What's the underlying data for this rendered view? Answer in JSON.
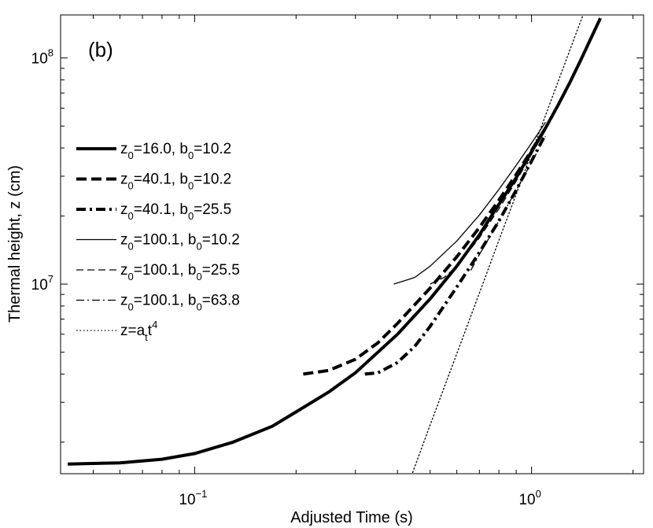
{
  "chart_data": {
    "type": "line",
    "panel_label": "(b)",
    "xlabel": "Adjusted Time (s)",
    "ylabel": "Thermal height, z (cm)",
    "xscale": "log",
    "yscale": "log",
    "xlim": [
      0.04,
      2.15
    ],
    "ylim": [
      1450000.0,
      155000000.0
    ],
    "grid": false,
    "legend_placement": "left",
    "x_ticks": [
      {
        "value": 0.1,
        "base": "10",
        "exp": "−1"
      },
      {
        "value": 1.0,
        "base": "10",
        "exp": "0"
      }
    ],
    "y_ticks": [
      {
        "value": 10000000.0,
        "base": "10",
        "exp": "7"
      },
      {
        "value": 100000000.0,
        "base": "10",
        "exp": "8"
      }
    ],
    "series": [
      {
        "name": "z0=16.0, b0=10.2",
        "label": {
          "a": "z",
          "a_sub": "0",
          "b": "=16.0, b",
          "b_sub": "0",
          "c": "=10.2",
          "sup": ""
        },
        "style": "solid",
        "width": 4,
        "points": [
          [
            0.042,
            1600000.0
          ],
          [
            0.06,
            1620000.0
          ],
          [
            0.08,
            1680000.0
          ],
          [
            0.1,
            1780000.0
          ],
          [
            0.13,
            2000000.0
          ],
          [
            0.17,
            2350000.0
          ],
          [
            0.2,
            2720000.0
          ],
          [
            0.25,
            3330000.0
          ],
          [
            0.3,
            4050000.0
          ],
          [
            0.4,
            6000000.0
          ],
          [
            0.5,
            8600000.0
          ],
          [
            0.6,
            12000000.0
          ],
          [
            0.7,
            16500000.0
          ],
          [
            0.8,
            22500000.0
          ],
          [
            0.9,
            29500000.0
          ],
          [
            1.0,
            38500000.0
          ],
          [
            1.1,
            49000000.0
          ],
          [
            1.2,
            62000000.0
          ],
          [
            1.3,
            78000000.0
          ],
          [
            1.4,
            98000000.0
          ],
          [
            1.6,
            150000000.0
          ]
        ]
      },
      {
        "name": "z0=40.1, b0=10.2",
        "label": {
          "a": "z",
          "a_sub": "0",
          "b": "=40.1, b",
          "b_sub": "0",
          "c": "=10.2",
          "sup": ""
        },
        "style": "dashed",
        "width": 4,
        "points": [
          [
            0.21,
            4000000.0
          ],
          [
            0.25,
            4150000.0
          ],
          [
            0.3,
            4650000.0
          ],
          [
            0.35,
            5500000.0
          ],
          [
            0.4,
            6700000.0
          ],
          [
            0.5,
            9600000.0
          ],
          [
            0.6,
            13200000.0
          ],
          [
            0.7,
            17800000.0
          ],
          [
            0.8,
            23500000.0
          ],
          [
            0.9,
            30500000.0
          ],
          [
            1.0,
            39000000.0
          ],
          [
            1.1,
            49000000.0
          ]
        ]
      },
      {
        "name": "z0=40.1, b0=25.5",
        "label": {
          "a": "z",
          "a_sub": "0",
          "b": "=40.1, b",
          "b_sub": "0",
          "c": "=25.5",
          "sup": ""
        },
        "style": "dashdot",
        "width": 4,
        "points": [
          [
            0.32,
            4000000.0
          ],
          [
            0.35,
            4050000.0
          ],
          [
            0.4,
            4500000.0
          ],
          [
            0.45,
            5300000.0
          ],
          [
            0.5,
            6500000.0
          ],
          [
            0.6,
            9700000.0
          ],
          [
            0.7,
            13800000.0
          ],
          [
            0.8,
            19000000.0
          ],
          [
            0.9,
            26000000.0
          ],
          [
            1.0,
            35000000.0
          ],
          [
            1.1,
            46000000.0
          ]
        ]
      },
      {
        "name": "z0=100.1, b0=10.2",
        "label": {
          "a": "z",
          "a_sub": "0",
          "b": "=100.1, b",
          "b_sub": "0",
          "c": "=10.2",
          "sup": ""
        },
        "style": "solid",
        "width": 1.3,
        "points": [
          [
            0.39,
            10000000.0
          ],
          [
            0.45,
            10700000.0
          ],
          [
            0.5,
            12000000.0
          ],
          [
            0.6,
            15500000.0
          ],
          [
            0.7,
            20200000.0
          ],
          [
            0.8,
            26200000.0
          ],
          [
            0.9,
            33500000.0
          ],
          [
            1.0,
            42000000.0
          ],
          [
            1.1,
            52000000.0
          ]
        ]
      },
      {
        "name": "z0=100.1, b0=25.5",
        "label": {
          "a": "z",
          "a_sub": "0",
          "b": "=100.1, b",
          "b_sub": "0",
          "c": "=25.5",
          "sup": ""
        },
        "style": "dashed",
        "width": 1.3,
        "points": [
          [
            0.5,
            10000000.0
          ],
          [
            0.55,
            10700000.0
          ],
          [
            0.6,
            12000000.0
          ],
          [
            0.7,
            16000000.0
          ],
          [
            0.8,
            21500000.0
          ],
          [
            0.9,
            28500000.0
          ],
          [
            1.0,
            37500000.0
          ],
          [
            1.1,
            48000000.0
          ]
        ]
      },
      {
        "name": "z0=100.1, b0=63.8",
        "label": {
          "a": "z",
          "a_sub": "0",
          "b": "=100.1, b",
          "b_sub": "0",
          "c": "=63.8",
          "sup": ""
        },
        "style": "dashdot",
        "width": 1.3,
        "points": [
          [
            0.66,
            11500000.0
          ],
          [
            0.7,
            13500000.0
          ],
          [
            0.8,
            19000000.0
          ],
          [
            0.9,
            26000000.0
          ],
          [
            1.0,
            34500000.0
          ],
          [
            1.1,
            45000000.0
          ]
        ]
      },
      {
        "name": "z=a_t t^4",
        "label": {
          "a": "z=a",
          "a_sub": "t",
          "b": "t",
          "b_sub": "",
          "c": "",
          "sup": "4"
        },
        "style": "dotted",
        "width": 1.3,
        "a_t": 38000000.0,
        "points": [
          [
            0.44,
            1420000.0
          ],
          [
            0.5,
            2380000.0
          ],
          [
            0.6,
            4920000.0
          ],
          [
            0.7,
            9120000.0
          ],
          [
            0.8,
            15600000.0
          ],
          [
            0.9,
            24900000.0
          ],
          [
            1.0,
            38000000.0
          ],
          [
            1.2,
            78800000.0
          ],
          [
            1.4,
            146000000.0
          ],
          [
            1.42,
            154000000.0
          ]
        ]
      }
    ]
  }
}
